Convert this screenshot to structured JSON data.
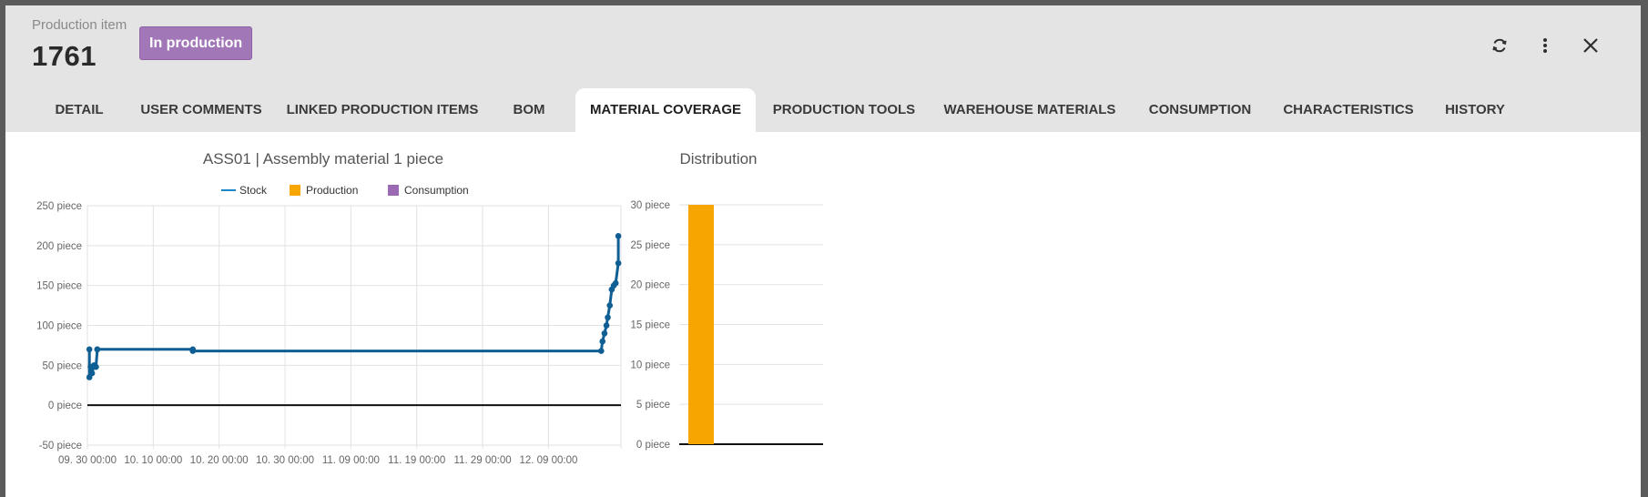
{
  "header": {
    "caption": "Production item",
    "item_id": "1761",
    "status": "In production",
    "status_color": "#a277b8",
    "actions": [
      {
        "name": "refresh-icon"
      },
      {
        "name": "more-vertical-icon"
      },
      {
        "name": "close-icon"
      }
    ]
  },
  "tabs": [
    {
      "label": "DETAIL",
      "active": false
    },
    {
      "label": "USER COMMENTS",
      "active": false
    },
    {
      "label": "LINKED PRODUCTION ITEMS",
      "active": false
    },
    {
      "label": "BOM",
      "active": false
    },
    {
      "label": "MATERIAL COVERAGE",
      "active": true
    },
    {
      "label": "PRODUCTION TOOLS",
      "active": false
    },
    {
      "label": "WAREHOUSE MATERIALS",
      "active": false
    },
    {
      "label": "CONSUMPTION",
      "active": false
    },
    {
      "label": "CHARACTERISTICS",
      "active": false
    },
    {
      "label": "HISTORY",
      "active": false
    }
  ],
  "chart_data": [
    {
      "type": "line",
      "title": "ASS01 | Assembly material 1 piece",
      "legend": [
        "Stock",
        "Production",
        "Consumption"
      ],
      "legend_colors": [
        "#1a86c8",
        "#f7a500",
        "#9b6ab5"
      ],
      "legend_position": "top-center",
      "y_unit": "piece",
      "ylim": [
        -50,
        250
      ],
      "y_ticks": [
        "250 piece",
        "200 piece",
        "150 piece",
        "100 piece",
        "50 piece",
        "0 piece",
        "-50 piece"
      ],
      "y_tick_values": [
        250,
        200,
        150,
        100,
        50,
        0,
        -50
      ],
      "x_ticks": [
        "09. 30 00:00",
        "10. 10 00:00",
        "10. 20 00:00",
        "10. 30 00:00",
        "11. 09 00:00",
        "11. 19 00:00",
        "11. 29 00:00",
        "12. 09 00:00"
      ],
      "x_tick_days": [
        0,
        10,
        20,
        30,
        40,
        50,
        60,
        70
      ],
      "xlim_days": [
        0,
        81
      ],
      "grid": true,
      "series": [
        {
          "name": "Stock",
          "color": "#0f5f94",
          "x_days": [
            0.3,
            0.3,
            0.5,
            0.7,
            1.0,
            1.3,
            1.5,
            1.5,
            16,
            16,
            78,
            78.2,
            78.5,
            78.8,
            79.0,
            79.3,
            79.6,
            79.9,
            80.2,
            80.6,
            80.6
          ],
          "values": [
            70,
            35,
            48,
            40,
            50,
            48,
            70,
            70,
            70,
            68,
            68,
            80,
            90,
            100,
            110,
            125,
            145,
            150,
            153,
            178,
            212
          ]
        }
      ]
    },
    {
      "type": "bar",
      "title": "Distribution",
      "y_unit": "piece",
      "ylim": [
        0,
        30
      ],
      "y_ticks": [
        "30 piece",
        "25 piece",
        "20 piece",
        "15 piece",
        "10 piece",
        "5 piece",
        "0 piece"
      ],
      "y_tick_values": [
        30,
        25,
        20,
        15,
        10,
        5,
        0
      ],
      "grid": true,
      "series": [
        {
          "name": "Production",
          "color": "#f7a500",
          "values": [
            30
          ]
        }
      ]
    }
  ]
}
